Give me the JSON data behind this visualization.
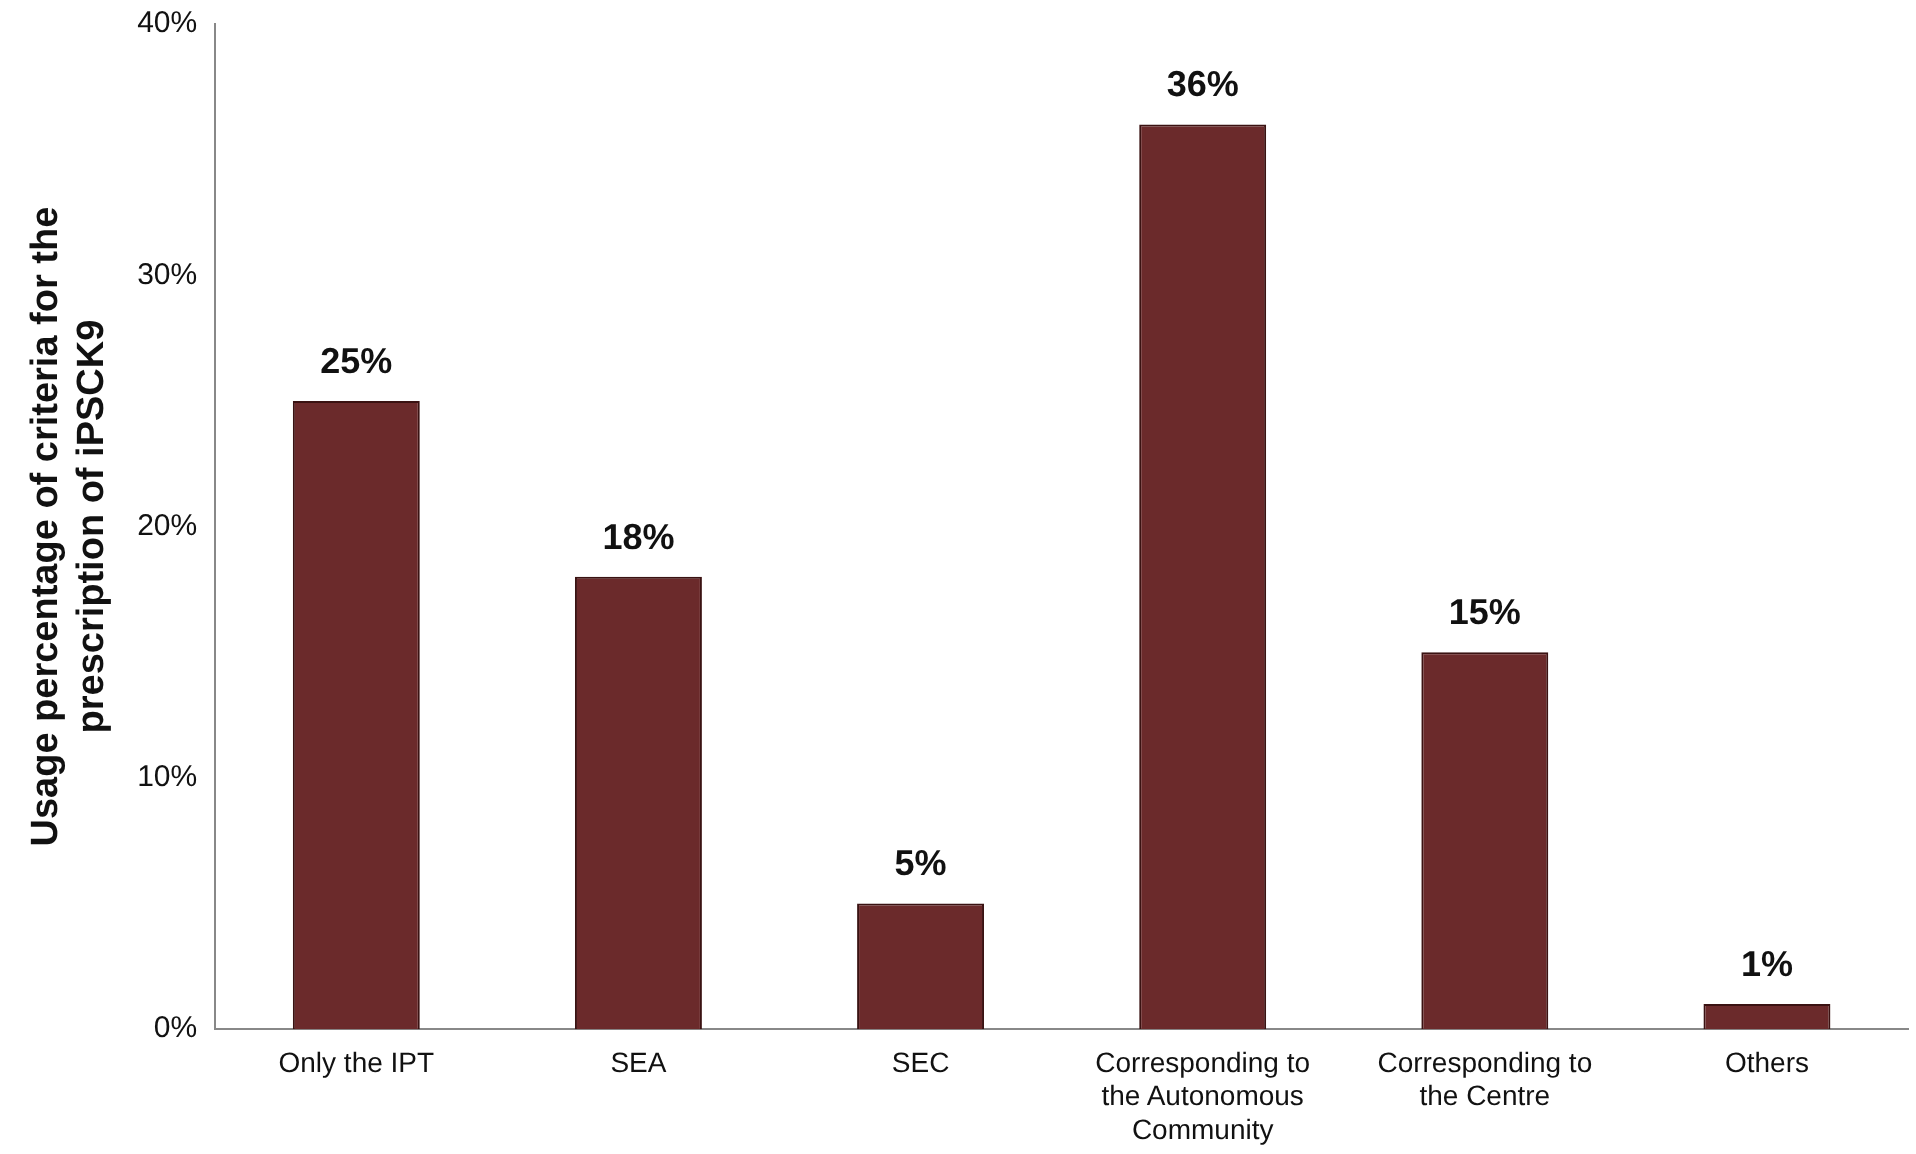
{
  "chart_data": {
    "type": "bar",
    "ylabel": "Usage percentage of criteria for the prescription of iPSCK9",
    "categories": [
      "Only the IPT",
      "SEA",
      "SEC",
      "Corresponding to the Autonomous Community",
      "Corresponding to the Centre",
      "Others"
    ],
    "values": [
      25,
      18,
      5,
      36,
      15,
      1
    ],
    "value_labels": [
      "25%",
      "18%",
      "5%",
      "36%",
      "15%",
      "1%"
    ],
    "color": "#6b2a2b",
    "ylim": [
      0,
      40
    ],
    "yticks": [
      {
        "value": 0,
        "label": "0%"
      },
      {
        "value": 10,
        "label": "10%"
      },
      {
        "value": 20,
        "label": "20%"
      },
      {
        "value": 30,
        "label": "30%"
      },
      {
        "value": 40,
        "label": "40%"
      }
    ],
    "grid": false,
    "legend": false
  }
}
